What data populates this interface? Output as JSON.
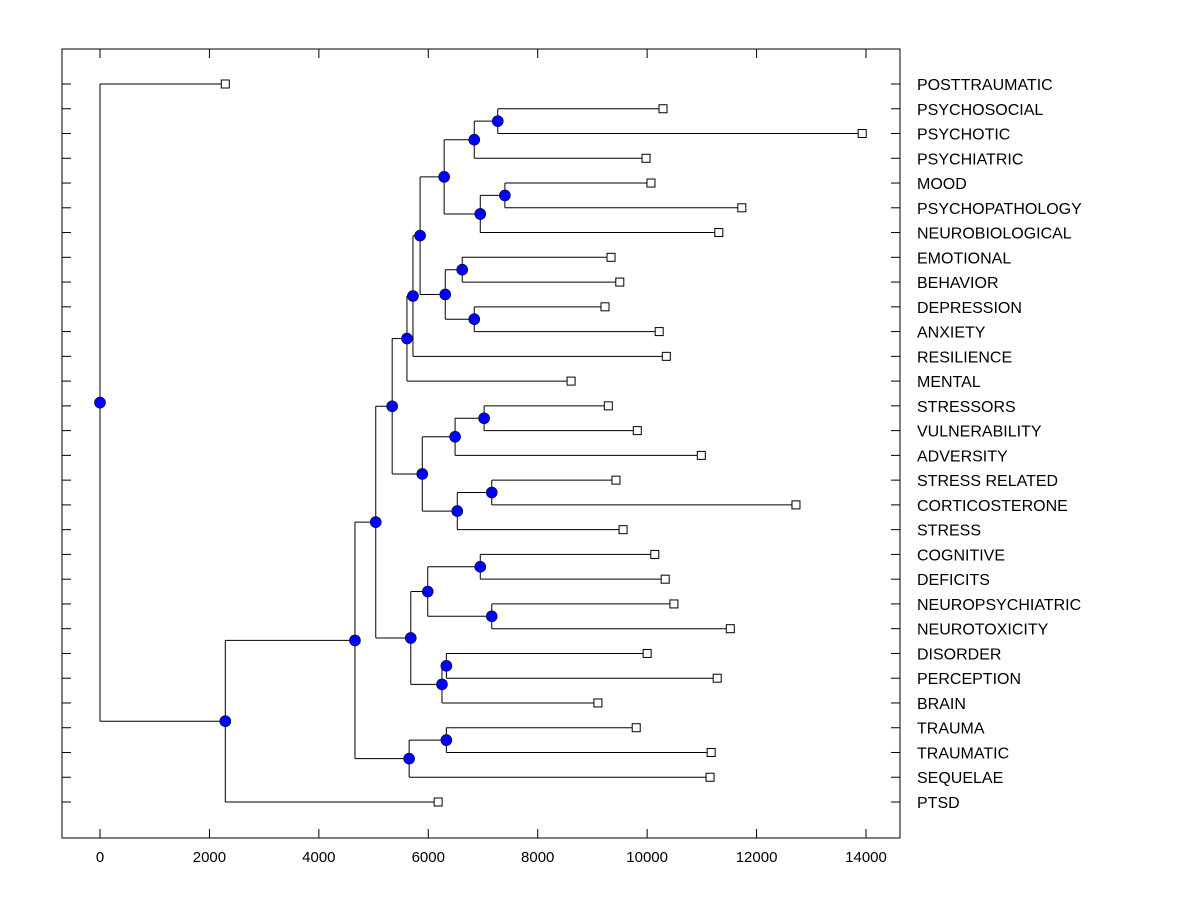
{
  "chart_data": {
    "type": "dendrogram",
    "title": "",
    "xlabel": "",
    "ylabel": "",
    "xlim": [
      -700,
      14800
    ],
    "xticks": [
      0,
      2000,
      4000,
      6000,
      8000,
      10000,
      12000,
      14000
    ],
    "xtick_labels": [
      "0",
      "2000",
      "4000",
      "6000",
      "8000",
      "10000",
      "12000",
      "14000"
    ],
    "grid": false,
    "leaf_order": [
      "POSTTRAUMATIC",
      "PSYCHOSOCIAL",
      "PSYCHOTIC",
      "PSYCHIATRIC",
      "MOOD",
      "PSYCHOPATHOLOGY",
      "NEUROBIOLOGICAL",
      "EMOTIONAL",
      "BEHAVIOR",
      "DEPRESSION",
      "ANXIETY",
      "RESILIENCE",
      "MENTAL",
      "STRESSORS",
      "VULNERABILITY",
      "ADVERSITY",
      "STRESS RELATED",
      "CORTICOSTERONE",
      "STRESS",
      "COGNITIVE",
      "DEFICITS",
      "NEUROPSYCHIATRIC",
      "NEUROTOXICITY",
      "DISORDER",
      "PERCEPTION",
      "BRAIN",
      "TRAUMA",
      "TRAUMATIC",
      "SEQUELAE",
      "PTSD"
    ],
    "leaf_values": {
      "POSTTRAUMATIC": 2290,
      "PSYCHOSOCIAL": 10290,
      "PSYCHOTIC": 13930,
      "PSYCHIATRIC": 9980,
      "MOOD": 10070,
      "PSYCHOPATHOLOGY": 11730,
      "NEUROBIOLOGICAL": 11310,
      "EMOTIONAL": 9340,
      "BEHAVIOR": 9500,
      "DEPRESSION": 9230,
      "ANXIETY": 10220,
      "RESILIENCE": 10350,
      "MENTAL": 8610,
      "STRESSORS": 9290,
      "VULNERABILITY": 9820,
      "ADVERSITY": 10990,
      "STRESS RELATED": 9430,
      "CORTICOSTERONE": 12720,
      "STRESS": 9560,
      "COGNITIVE": 10140,
      "DEFICITS": 10330,
      "NEUROPSYCHIATRIC": 10490,
      "NEUROTOXICITY": 11520,
      "DISORDER": 10000,
      "PERCEPTION": 11280,
      "BRAIN": 9100,
      "TRAUMA": 9800,
      "TRAUMATIC": 11170,
      "SEQUELAE": 11150,
      "PTSD": 6180
    },
    "tree": {
      "v": 0,
      "c": [
        "POSTTRAUMATIC",
        {
          "v": 2290,
          "c": [
            {
              "v": 4660,
              "c": [
                {
                  "v": 5040,
                  "c": [
                    {
                      "v": 5340,
                      "c": [
                        {
                          "v": 5610,
                          "c": [
                            {
                              "v": 5720,
                              "c": [
                                {
                                  "v": 5850,
                                  "c": [
                                    {
                                      "v": 6290,
                                      "c": [
                                        {
                                          "v": 6840,
                                          "c": [
                                            {
                                              "v": 7270,
                                              "c": [
                                                "PSYCHOSOCIAL",
                                                "PSYCHOTIC"
                                              ]
                                            },
                                            "PSYCHIATRIC"
                                          ]
                                        },
                                        {
                                          "v": 6950,
                                          "c": [
                                            {
                                              "v": 7400,
                                              "c": [
                                                "MOOD",
                                                "PSYCHOPATHOLOGY"
                                              ]
                                            },
                                            "NEUROBIOLOGICAL"
                                          ]
                                        }
                                      ]
                                    },
                                    {
                                      "v": 6310,
                                      "c": [
                                        {
                                          "v": 6620,
                                          "c": [
                                            "EMOTIONAL",
                                            "BEHAVIOR"
                                          ]
                                        },
                                        {
                                          "v": 6840,
                                          "c": [
                                            "DEPRESSION",
                                            "ANXIETY"
                                          ]
                                        }
                                      ]
                                    }
                                  ]
                                },
                                "RESILIENCE"
                              ]
                            },
                            "MENTAL"
                          ]
                        },
                        {
                          "v": 5890,
                          "c": [
                            {
                              "v": 6490,
                              "c": [
                                {
                                  "v": 7020,
                                  "c": [
                                    "STRESSORS",
                                    "VULNERABILITY"
                                  ]
                                },
                                "ADVERSITY"
                              ]
                            },
                            {
                              "v": 6530,
                              "c": [
                                {
                                  "v": 7160,
                                  "c": [
                                    "STRESS RELATED",
                                    "CORTICOSTERONE"
                                  ]
                                },
                                "STRESS"
                              ]
                            }
                          ]
                        }
                      ]
                    },
                    {
                      "v": 5680,
                      "c": [
                        {
                          "v": 5990,
                          "c": [
                            {
                              "v": 6950,
                              "c": [
                                "COGNITIVE",
                                "DEFICITS"
                              ]
                            },
                            {
                              "v": 7160,
                              "c": [
                                "NEUROPSYCHIATRIC",
                                "NEUROTOXICITY"
                              ]
                            }
                          ]
                        },
                        {
                          "v": 6250,
                          "c": [
                            {
                              "v": 6330,
                              "c": [
                                "DISORDER",
                                "PERCEPTION"
                              ]
                            },
                            "BRAIN"
                          ]
                        }
                      ]
                    }
                  ]
                },
                {
                  "v": 5650,
                  "c": [
                    {
                      "v": 6330,
                      "c": [
                        "TRAUMA",
                        "TRAUMATIC"
                      ]
                    },
                    "SEQUELAE"
                  ]
                }
              ]
            },
            "PTSD"
          ]
        }
      ]
    },
    "colors": {
      "node_fill": "#0000ff",
      "leaf_fill": "#ffffff",
      "line": "#000000"
    }
  }
}
